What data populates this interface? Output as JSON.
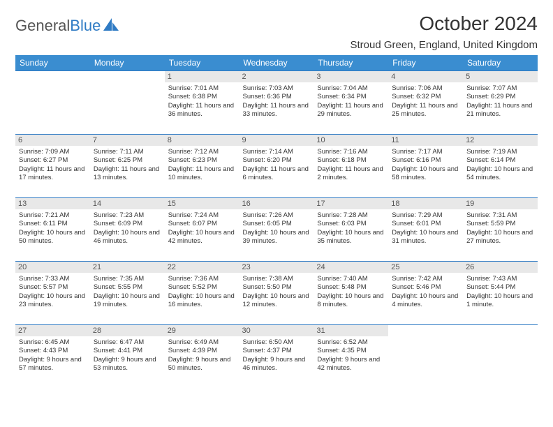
{
  "brand": {
    "part1": "General",
    "part2": "Blue"
  },
  "title": "October 2024",
  "location": "Stroud Green, England, United Kingdom",
  "colors": {
    "header_bg": "#3a8dd0",
    "border": "#2f7bc4",
    "daynum_bg": "#e8e8e8",
    "text": "#333333"
  },
  "weekdays": [
    "Sunday",
    "Monday",
    "Tuesday",
    "Wednesday",
    "Thursday",
    "Friday",
    "Saturday"
  ],
  "weeks": [
    [
      null,
      null,
      {
        "n": "1",
        "sr": "7:01 AM",
        "ss": "6:38 PM",
        "dl": "11 hours and 36 minutes."
      },
      {
        "n": "2",
        "sr": "7:03 AM",
        "ss": "6:36 PM",
        "dl": "11 hours and 33 minutes."
      },
      {
        "n": "3",
        "sr": "7:04 AM",
        "ss": "6:34 PM",
        "dl": "11 hours and 29 minutes."
      },
      {
        "n": "4",
        "sr": "7:06 AM",
        "ss": "6:32 PM",
        "dl": "11 hours and 25 minutes."
      },
      {
        "n": "5",
        "sr": "7:07 AM",
        "ss": "6:29 PM",
        "dl": "11 hours and 21 minutes."
      }
    ],
    [
      {
        "n": "6",
        "sr": "7:09 AM",
        "ss": "6:27 PM",
        "dl": "11 hours and 17 minutes."
      },
      {
        "n": "7",
        "sr": "7:11 AM",
        "ss": "6:25 PM",
        "dl": "11 hours and 13 minutes."
      },
      {
        "n": "8",
        "sr": "7:12 AM",
        "ss": "6:23 PM",
        "dl": "11 hours and 10 minutes."
      },
      {
        "n": "9",
        "sr": "7:14 AM",
        "ss": "6:20 PM",
        "dl": "11 hours and 6 minutes."
      },
      {
        "n": "10",
        "sr": "7:16 AM",
        "ss": "6:18 PM",
        "dl": "11 hours and 2 minutes."
      },
      {
        "n": "11",
        "sr": "7:17 AM",
        "ss": "6:16 PM",
        "dl": "10 hours and 58 minutes."
      },
      {
        "n": "12",
        "sr": "7:19 AM",
        "ss": "6:14 PM",
        "dl": "10 hours and 54 minutes."
      }
    ],
    [
      {
        "n": "13",
        "sr": "7:21 AM",
        "ss": "6:11 PM",
        "dl": "10 hours and 50 minutes."
      },
      {
        "n": "14",
        "sr": "7:23 AM",
        "ss": "6:09 PM",
        "dl": "10 hours and 46 minutes."
      },
      {
        "n": "15",
        "sr": "7:24 AM",
        "ss": "6:07 PM",
        "dl": "10 hours and 42 minutes."
      },
      {
        "n": "16",
        "sr": "7:26 AM",
        "ss": "6:05 PM",
        "dl": "10 hours and 39 minutes."
      },
      {
        "n": "17",
        "sr": "7:28 AM",
        "ss": "6:03 PM",
        "dl": "10 hours and 35 minutes."
      },
      {
        "n": "18",
        "sr": "7:29 AM",
        "ss": "6:01 PM",
        "dl": "10 hours and 31 minutes."
      },
      {
        "n": "19",
        "sr": "7:31 AM",
        "ss": "5:59 PM",
        "dl": "10 hours and 27 minutes."
      }
    ],
    [
      {
        "n": "20",
        "sr": "7:33 AM",
        "ss": "5:57 PM",
        "dl": "10 hours and 23 minutes."
      },
      {
        "n": "21",
        "sr": "7:35 AM",
        "ss": "5:55 PM",
        "dl": "10 hours and 19 minutes."
      },
      {
        "n": "22",
        "sr": "7:36 AM",
        "ss": "5:52 PM",
        "dl": "10 hours and 16 minutes."
      },
      {
        "n": "23",
        "sr": "7:38 AM",
        "ss": "5:50 PM",
        "dl": "10 hours and 12 minutes."
      },
      {
        "n": "24",
        "sr": "7:40 AM",
        "ss": "5:48 PM",
        "dl": "10 hours and 8 minutes."
      },
      {
        "n": "25",
        "sr": "7:42 AM",
        "ss": "5:46 PM",
        "dl": "10 hours and 4 minutes."
      },
      {
        "n": "26",
        "sr": "7:43 AM",
        "ss": "5:44 PM",
        "dl": "10 hours and 1 minute."
      }
    ],
    [
      {
        "n": "27",
        "sr": "6:45 AM",
        "ss": "4:43 PM",
        "dl": "9 hours and 57 minutes."
      },
      {
        "n": "28",
        "sr": "6:47 AM",
        "ss": "4:41 PM",
        "dl": "9 hours and 53 minutes."
      },
      {
        "n": "29",
        "sr": "6:49 AM",
        "ss": "4:39 PM",
        "dl": "9 hours and 50 minutes."
      },
      {
        "n": "30",
        "sr": "6:50 AM",
        "ss": "4:37 PM",
        "dl": "9 hours and 46 minutes."
      },
      {
        "n": "31",
        "sr": "6:52 AM",
        "ss": "4:35 PM",
        "dl": "9 hours and 42 minutes."
      },
      null,
      null
    ]
  ],
  "labels": {
    "sunrise": "Sunrise:",
    "sunset": "Sunset:",
    "daylight": "Daylight:"
  }
}
